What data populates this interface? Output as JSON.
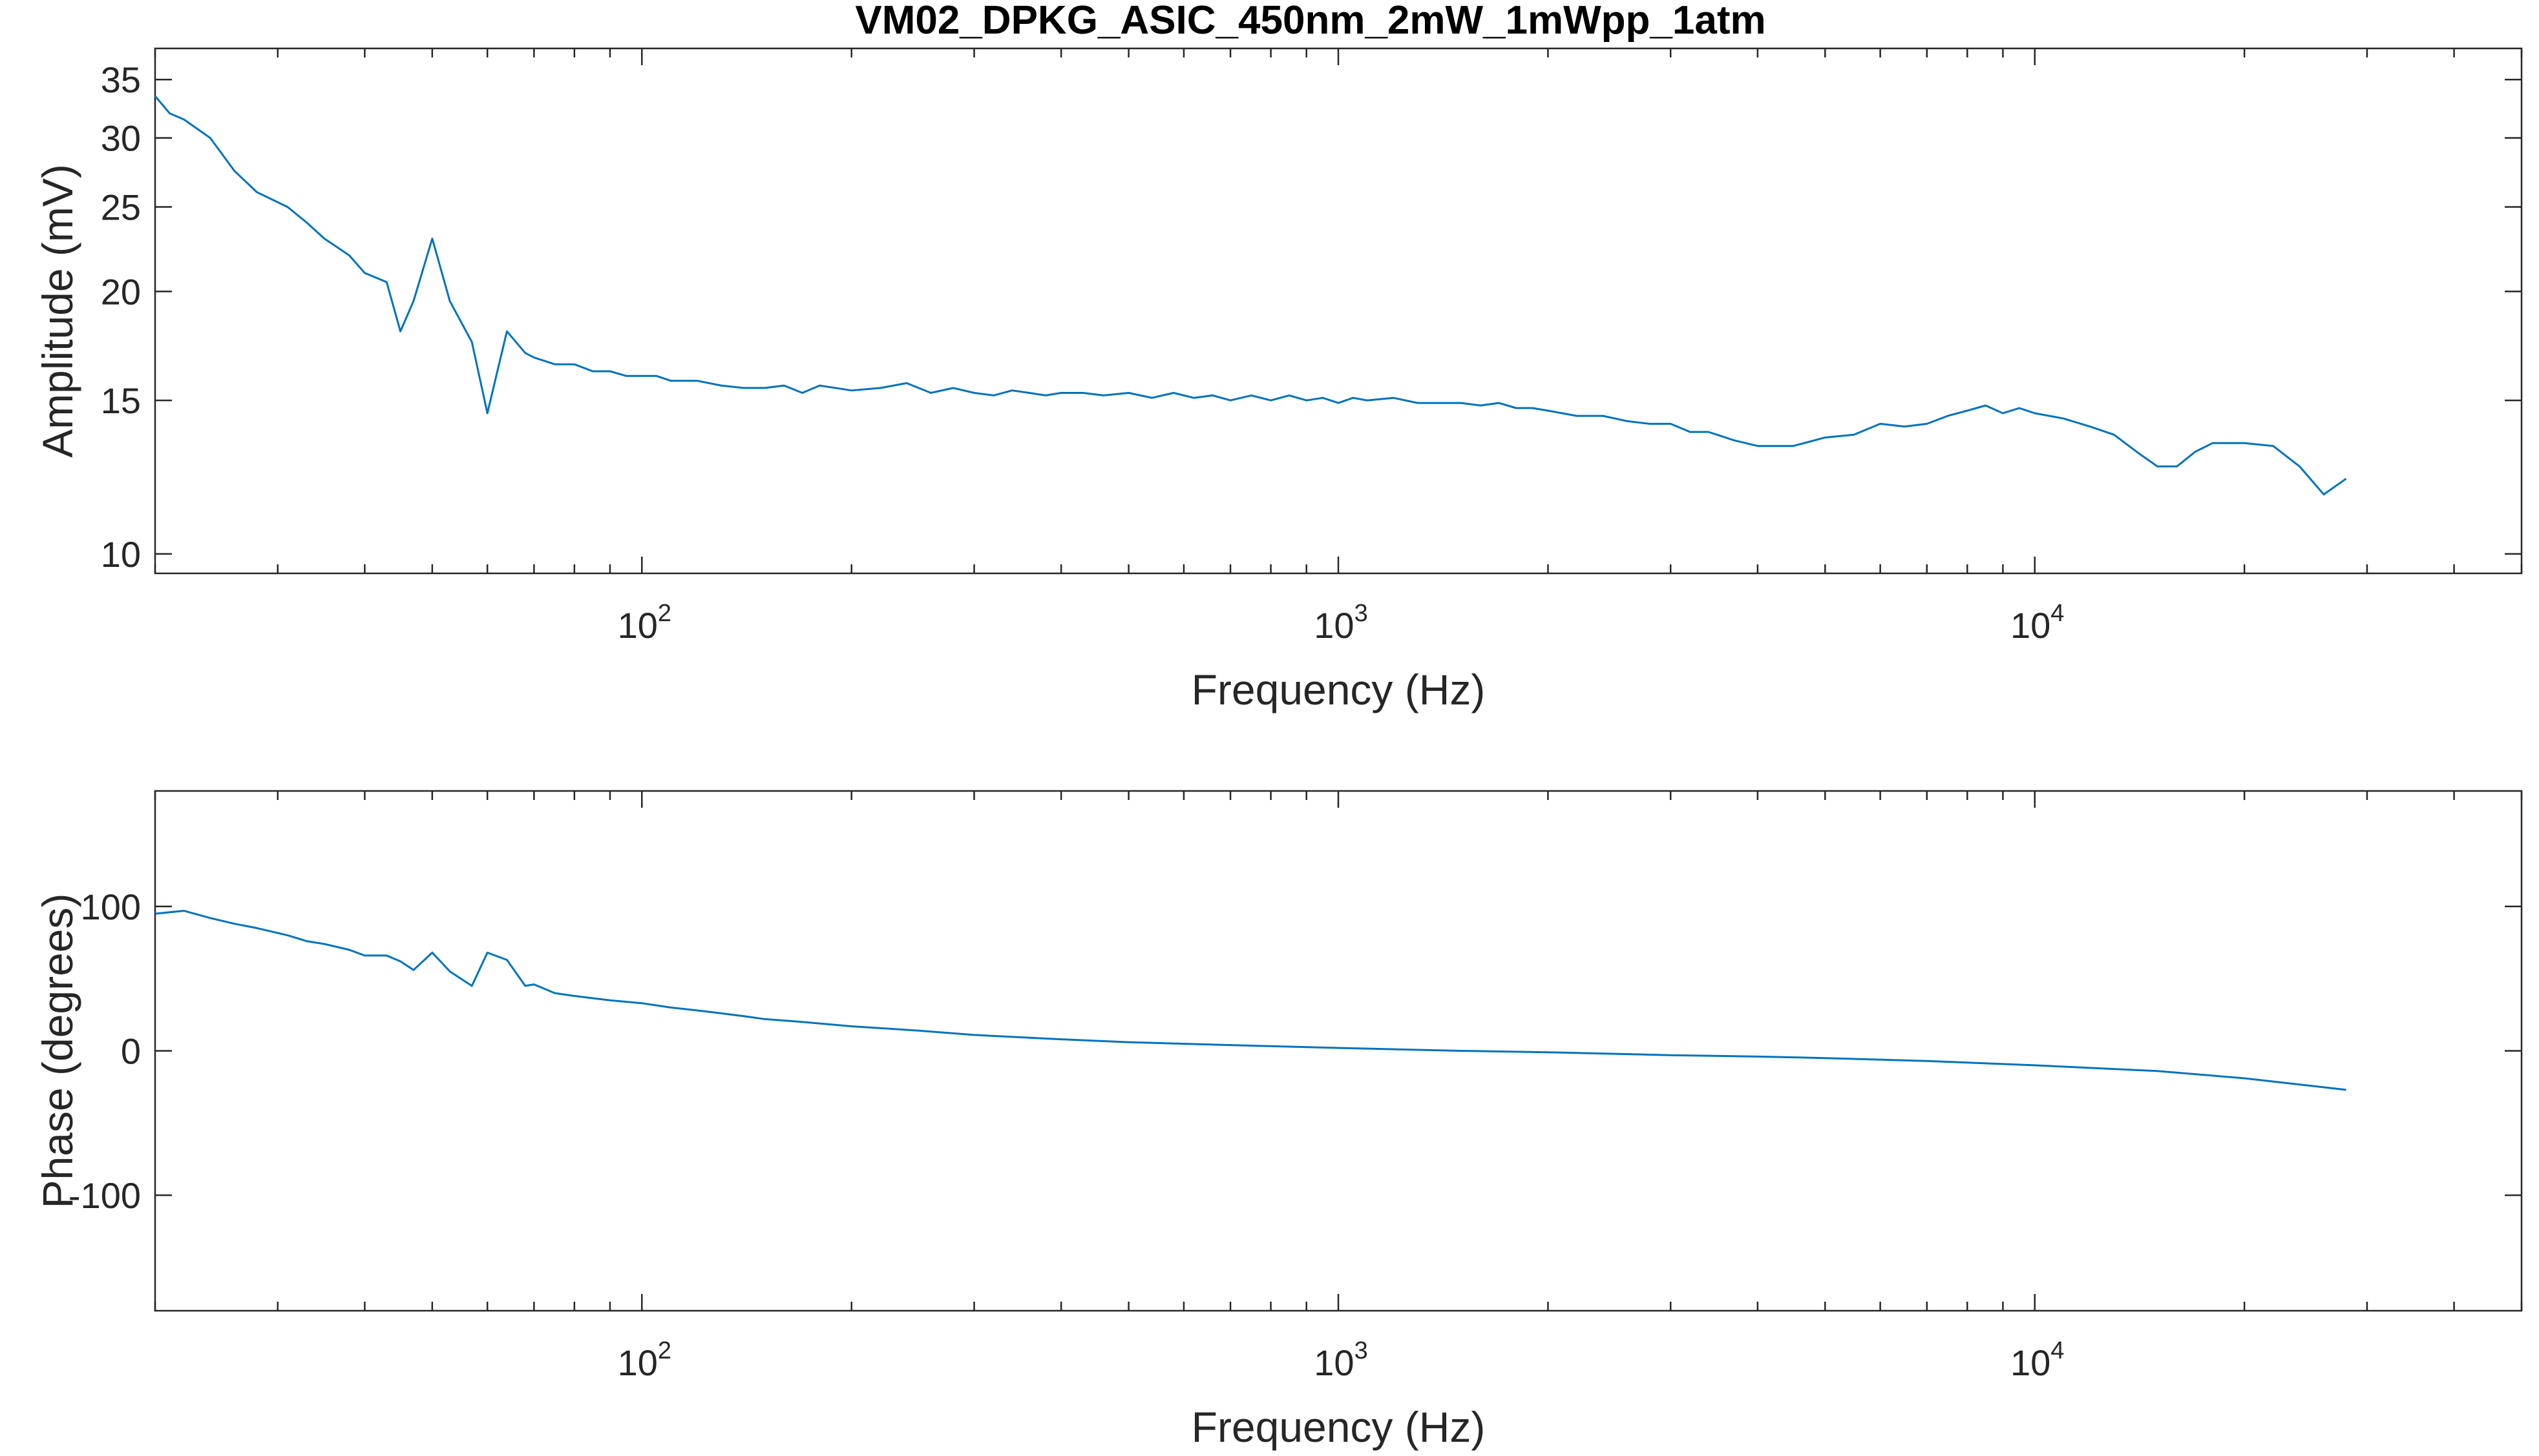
{
  "chart_data": [
    {
      "type": "line",
      "title": "VM02_DPKG_ASIC_450nm_2mW_1mWpp_1atm",
      "xlabel": "Frequency (Hz)",
      "ylabel": "Amplitude (mV)",
      "xscale": "log",
      "yscale": "log",
      "xlim": [
        20,
        50000
      ],
      "ylim": [
        9.5,
        38
      ],
      "xticks": [
        {
          "value": 100,
          "base": "10",
          "exp": "2"
        },
        {
          "value": 1000,
          "base": "10",
          "exp": "3"
        },
        {
          "value": 10000,
          "base": "10",
          "exp": "4"
        }
      ],
      "yticks": [
        {
          "value": 10,
          "label": "10"
        },
        {
          "value": 15,
          "label": "15"
        },
        {
          "value": 20,
          "label": "20"
        },
        {
          "value": 25,
          "label": "25"
        },
        {
          "value": 30,
          "label": "30"
        },
        {
          "value": 35,
          "label": "35"
        }
      ],
      "grid": false,
      "color": "#0072BD",
      "series": [
        {
          "x": [
            20,
            21,
            22,
            24,
            26,
            28,
            31,
            33,
            35,
            38,
            40,
            43,
            45,
            47,
            50,
            53,
            57,
            60,
            64,
            68,
            70,
            75,
            80,
            85,
            90,
            95,
            100,
            105,
            110,
            120,
            130,
            140,
            150,
            160,
            170,
            180,
            200,
            220,
            240,
            260,
            280,
            300,
            320,
            340,
            360,
            380,
            400,
            430,
            460,
            500,
            540,
            580,
            620,
            660,
            700,
            750,
            800,
            850,
            900,
            950,
            1000,
            1050,
            1100,
            1200,
            1300,
            1400,
            1500,
            1600,
            1700,
            1800,
            1900,
            2000,
            2200,
            2400,
            2600,
            2800,
            3000,
            3200,
            3400,
            3700,
            4000,
            4500,
            5000,
            5500,
            6000,
            6500,
            7000,
            7500,
            8000,
            8500,
            9000,
            9500,
            10000,
            11000,
            12000,
            13000,
            14000,
            15000,
            16000,
            17000,
            18000,
            20000,
            22000,
            24000,
            26000,
            28000
          ],
          "y": [
            33.5,
            32.0,
            31.5,
            30.0,
            27.5,
            26.0,
            25.0,
            24.0,
            23.0,
            22.0,
            21.0,
            20.5,
            18.0,
            19.5,
            23.0,
            19.5,
            17.5,
            14.5,
            18.0,
            17.0,
            16.8,
            16.5,
            16.5,
            16.2,
            16.2,
            16.0,
            16.0,
            16.0,
            15.8,
            15.8,
            15.6,
            15.5,
            15.5,
            15.6,
            15.3,
            15.6,
            15.4,
            15.5,
            15.7,
            15.3,
            15.5,
            15.3,
            15.2,
            15.4,
            15.3,
            15.2,
            15.3,
            15.3,
            15.2,
            15.3,
            15.1,
            15.3,
            15.1,
            15.2,
            15.0,
            15.2,
            15.0,
            15.2,
            15.0,
            15.1,
            14.9,
            15.1,
            15.0,
            15.1,
            14.9,
            14.9,
            14.9,
            14.8,
            14.9,
            14.7,
            14.7,
            14.6,
            14.4,
            14.4,
            14.2,
            14.1,
            14.1,
            13.8,
            13.8,
            13.5,
            13.3,
            13.3,
            13.6,
            13.7,
            14.1,
            14.0,
            14.1,
            14.4,
            14.6,
            14.8,
            14.5,
            14.7,
            14.5,
            14.3,
            14.0,
            13.7,
            13.1,
            12.6,
            12.6,
            13.1,
            13.4,
            13.4,
            13.3,
            12.6,
            11.7,
            12.2
          ]
        }
      ]
    },
    {
      "type": "line",
      "title": "",
      "xlabel": "Frequency (Hz)",
      "ylabel": "Phase (degrees)",
      "xscale": "log",
      "yscale": "linear",
      "xlim": [
        20,
        50000
      ],
      "ylim": [
        -180,
        180
      ],
      "xticks": [
        {
          "value": 100,
          "base": "10",
          "exp": "2"
        },
        {
          "value": 1000,
          "base": "10",
          "exp": "3"
        },
        {
          "value": 10000,
          "base": "10",
          "exp": "4"
        }
      ],
      "yticks": [
        {
          "value": -100,
          "label": "-100"
        },
        {
          "value": 0,
          "label": "0"
        },
        {
          "value": 100,
          "label": "100"
        }
      ],
      "grid": false,
      "color": "#0072BD",
      "series": [
        {
          "x": [
            20,
            22,
            24,
            26,
            28,
            31,
            33,
            35,
            38,
            40,
            43,
            45,
            47,
            50,
            53,
            57,
            60,
            64,
            68,
            70,
            75,
            80,
            90,
            100,
            110,
            120,
            130,
            140,
            150,
            170,
            200,
            250,
            300,
            400,
            500,
            700,
            1000,
            1500,
            2000,
            3000,
            4000,
            5000,
            7000,
            10000,
            15000,
            20000,
            28000
          ],
          "y": [
            95,
            97,
            92,
            88,
            85,
            80,
            76,
            74,
            70,
            66,
            66,
            62,
            56,
            68,
            55,
            45,
            68,
            63,
            45,
            46,
            40,
            38,
            35,
            33,
            30,
            28,
            26,
            24,
            22,
            20,
            17,
            14,
            11,
            8,
            6,
            4,
            2,
            0,
            -1,
            -3,
            -4,
            -5,
            -7,
            -10,
            -14,
            -19,
            -27
          ]
        }
      ]
    }
  ]
}
